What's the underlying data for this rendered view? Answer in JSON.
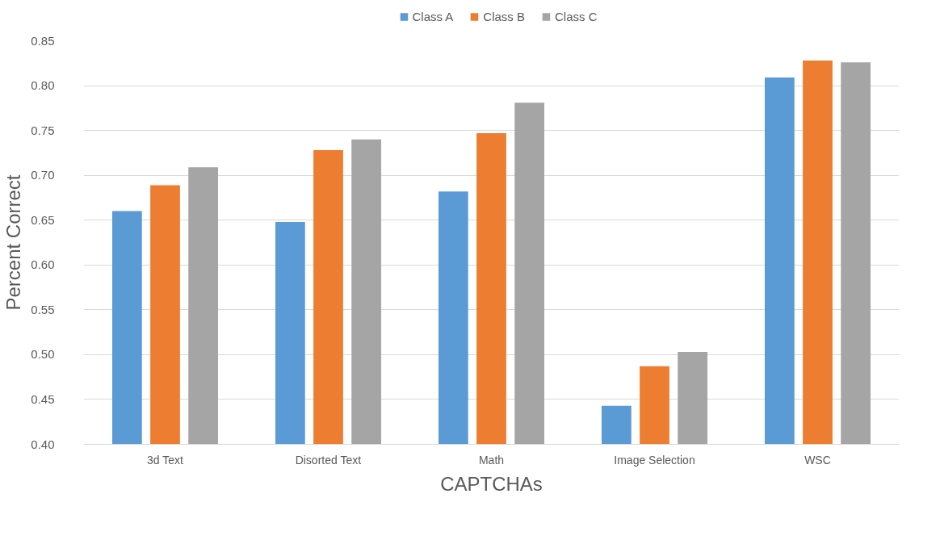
{
  "chart_data": {
    "type": "bar",
    "xlabel": "CAPTCHAs",
    "ylabel": "Percent Correct",
    "categories": [
      "3d Text",
      "Disorted Text",
      "Math",
      "Image Selection",
      "WSC"
    ],
    "series": [
      {
        "name": "Class A",
        "color": "#5b9bd5",
        "values": [
          0.66,
          0.648,
          0.682,
          0.443,
          0.809
        ]
      },
      {
        "name": "Class B",
        "color": "#ed7d31",
        "values": [
          0.689,
          0.728,
          0.747,
          0.487,
          0.828
        ]
      },
      {
        "name": "Class C",
        "color": "#a5a5a5",
        "values": [
          0.709,
          0.74,
          0.781,
          0.503,
          0.826
        ]
      }
    ],
    "ylim": [
      0.4,
      0.85
    ],
    "yticks": [
      {
        "value": 0.4,
        "label": "0.40"
      },
      {
        "value": 0.45,
        "label": "0.45"
      },
      {
        "value": 0.5,
        "label": "0.50"
      },
      {
        "value": 0.55,
        "label": "0.55"
      },
      {
        "value": 0.6,
        "label": "0.60"
      },
      {
        "value": 0.65,
        "label": "0.65"
      },
      {
        "value": 0.7,
        "label": "0.70"
      },
      {
        "value": 0.75,
        "label": "0.75"
      },
      {
        "value": 0.8,
        "label": "0.80"
      },
      {
        "value": 0.85,
        "label": "0.85"
      }
    ],
    "grid": "y",
    "legend": "top"
  }
}
